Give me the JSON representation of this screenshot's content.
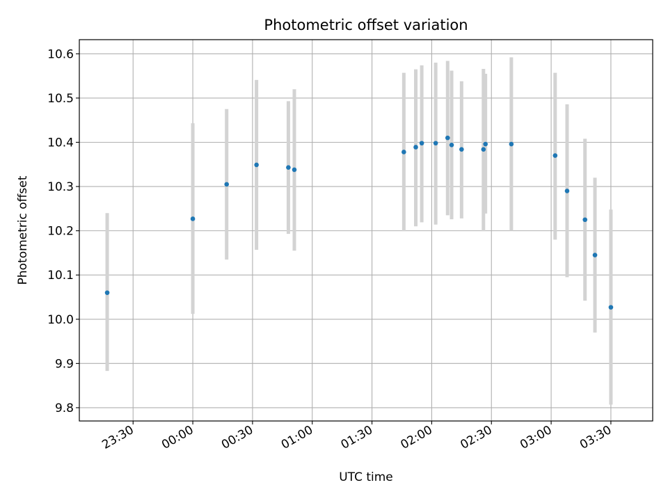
{
  "chart_data": {
    "type": "scatter",
    "title": "Photometric offset variation",
    "xlabel": "UTC time",
    "ylabel": "Photometric offset",
    "grid": true,
    "x_axis_type": "time",
    "xlim": [
      "23:03",
      "03:51"
    ],
    "ylim": [
      9.77,
      10.632
    ],
    "x_ticks": [
      "23:30",
      "00:00",
      "00:30",
      "01:00",
      "01:30",
      "02:00",
      "02:30",
      "03:00",
      "03:30"
    ],
    "y_ticks": [
      9.8,
      9.9,
      10.0,
      10.1,
      10.2,
      10.3,
      10.4,
      10.5,
      10.6
    ],
    "colors": {
      "points": "#1f77b4",
      "error_bars": "#d3d3d3",
      "grid": "#b0b0b0"
    },
    "series": [
      {
        "points": [
          {
            "x": "23:17",
            "y": 10.06,
            "y_low": 9.883,
            "y_high": 10.24
          },
          {
            "x": "00:00",
            "y": 10.227,
            "y_low": 10.012,
            "y_high": 10.443
          },
          {
            "x": "00:17",
            "y": 10.305,
            "y_low": 10.135,
            "y_high": 10.475
          },
          {
            "x": "00:32",
            "y": 10.349,
            "y_low": 10.157,
            "y_high": 10.541
          },
          {
            "x": "00:48",
            "y": 10.343,
            "y_low": 10.193,
            "y_high": 10.493
          },
          {
            "x": "00:51",
            "y": 10.338,
            "y_low": 10.155,
            "y_high": 10.52
          },
          {
            "x": "01:46",
            "y": 10.378,
            "y_low": 10.199,
            "y_high": 10.557
          },
          {
            "x": "01:52",
            "y": 10.389,
            "y_low": 10.21,
            "y_high": 10.565
          },
          {
            "x": "01:55",
            "y": 10.398,
            "y_low": 10.219,
            "y_high": 10.574
          },
          {
            "x": "02:02",
            "y": 10.398,
            "y_low": 10.214,
            "y_high": 10.58
          },
          {
            "x": "02:08",
            "y": 10.41,
            "y_low": 10.235,
            "y_high": 10.584
          },
          {
            "x": "02:10",
            "y": 10.394,
            "y_low": 10.226,
            "y_high": 10.562
          },
          {
            "x": "02:15",
            "y": 10.384,
            "y_low": 10.228,
            "y_high": 10.538
          },
          {
            "x": "02:26",
            "y": 10.384,
            "y_low": 10.199,
            "y_high": 10.566
          },
          {
            "x": "02:27",
            "y": 10.396,
            "y_low": 10.239,
            "y_high": 10.555
          },
          {
            "x": "02:40",
            "y": 10.396,
            "y_low": 10.2,
            "y_high": 10.592
          },
          {
            "x": "03:02",
            "y": 10.37,
            "y_low": 10.18,
            "y_high": 10.557
          },
          {
            "x": "03:08",
            "y": 10.29,
            "y_low": 10.095,
            "y_high": 10.486
          },
          {
            "x": "03:17",
            "y": 10.225,
            "y_low": 10.042,
            "y_high": 10.408
          },
          {
            "x": "03:22",
            "y": 10.145,
            "y_low": 9.97,
            "y_high": 10.32
          },
          {
            "x": "03:30",
            "y": 10.027,
            "y_low": 9.807,
            "y_high": 10.248
          }
        ]
      }
    ]
  }
}
